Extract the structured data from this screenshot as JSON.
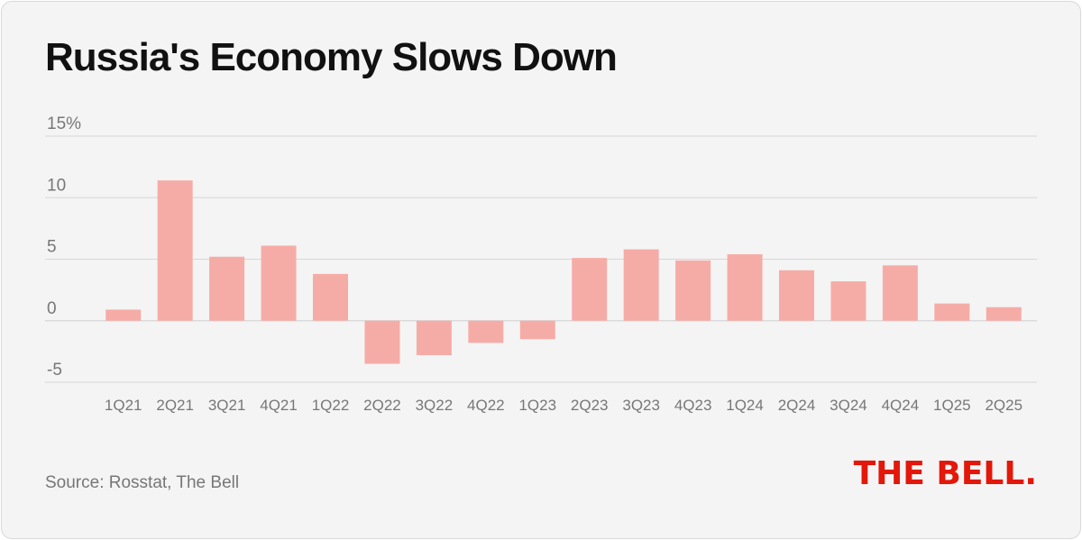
{
  "title": "Russia's Economy Slows Down",
  "source": "Source: Rosstat, The Bell",
  "logo_text": "THE BELL.",
  "colors": {
    "bar": "#f6aca6",
    "grid": "#d6d6d6",
    "text": "#777777",
    "title": "#111111",
    "logo": "#e3170a",
    "background": "#f4f4f4"
  },
  "chart_data": {
    "type": "bar",
    "title": "Russia's Economy Slows Down",
    "xlabel": "",
    "ylabel": "",
    "categories": [
      "1Q21",
      "2Q21",
      "3Q21",
      "4Q21",
      "1Q22",
      "2Q22",
      "3Q22",
      "4Q22",
      "1Q23",
      "2Q23",
      "3Q23",
      "4Q23",
      "1Q24",
      "2Q24",
      "3Q24",
      "4Q24",
      "1Q25",
      "2Q25"
    ],
    "values": [
      0.9,
      11.4,
      5.2,
      6.1,
      3.8,
      -3.5,
      -2.8,
      -1.8,
      -1.5,
      5.1,
      5.8,
      4.9,
      5.4,
      4.1,
      3.2,
      4.5,
      1.4,
      1.1
    ],
    "yticks": [
      -5,
      0,
      5,
      10,
      15
    ],
    "ytick_labels": [
      "-5",
      "0",
      "5",
      "10",
      "15%"
    ],
    "ylim": [
      -5,
      15
    ],
    "grid": true,
    "legend": "none"
  }
}
